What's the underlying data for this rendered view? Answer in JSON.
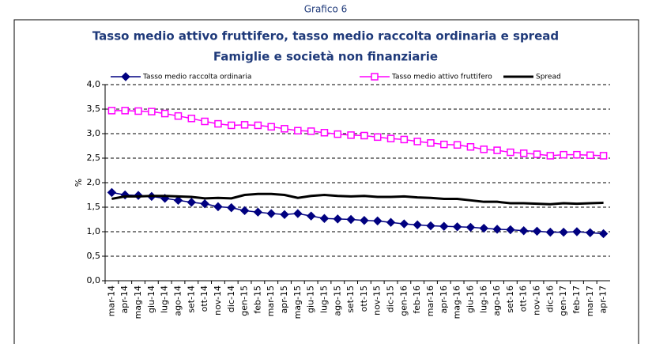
{
  "page_title": "Grafico 6",
  "chart_data": {
    "type": "line",
    "title": "Tasso medio attivo fruttifero, tasso medio raccolta ordinaria e spread",
    "subtitle": "Famiglie e società non finanziarie",
    "y_label": "%",
    "legend": "top",
    "grid": true,
    "categories": [
      "mar-14",
      "apr-14",
      "mag-14",
      "giu-14",
      "lug-14",
      "ago-14",
      "set-14",
      "ott-14",
      "nov-14",
      "dic-14",
      "gen-15",
      "feb-15",
      "mar-15",
      "apr-15",
      "mag-15",
      "giu-15",
      "lug-15",
      "ago-15",
      "set-15",
      "ott-15",
      "nov-15",
      "dic-15",
      "gen-16",
      "feb-16",
      "mar-16",
      "apr-16",
      "mag-16",
      "giu-16",
      "lug-16",
      "ago-16",
      "set-16",
      "ott-16",
      "nov-16",
      "dic-16",
      "gen-17",
      "feb-17",
      "mar-17",
      "apr-17"
    ],
    "ylim": [
      0,
      4
    ],
    "yticks": [
      {
        "value": 0,
        "label": "0,0"
      },
      {
        "value": 0.5,
        "label": "0,5"
      },
      {
        "value": 1,
        "label": "1,0"
      },
      {
        "value": 1.5,
        "label": "1,5"
      },
      {
        "value": 2,
        "label": "2,0"
      },
      {
        "value": 2.5,
        "label": "2,5"
      },
      {
        "value": 3,
        "label": "3,0"
      },
      {
        "value": 3.5,
        "label": "3,5"
      },
      {
        "value": 4,
        "label": "4,0"
      }
    ],
    "series": [
      {
        "name": "Tasso medio raccolta ordinaria",
        "color": "#000080",
        "marker": "diamond",
        "values": [
          1.8,
          1.75,
          1.74,
          1.72,
          1.68,
          1.64,
          1.6,
          1.57,
          1.51,
          1.49,
          1.43,
          1.4,
          1.37,
          1.35,
          1.37,
          1.32,
          1.27,
          1.26,
          1.25,
          1.23,
          1.22,
          1.19,
          1.16,
          1.14,
          1.12,
          1.11,
          1.1,
          1.09,
          1.07,
          1.05,
          1.04,
          1.02,
          1.01,
          0.99,
          0.99,
          1.0,
          0.98,
          0.96
        ]
      },
      {
        "name": "Tasso medio attivo fruttifero",
        "color": "#ff00ff",
        "marker": "square",
        "values": [
          3.47,
          3.47,
          3.46,
          3.45,
          3.41,
          3.36,
          3.31,
          3.25,
          3.2,
          3.17,
          3.18,
          3.17,
          3.14,
          3.1,
          3.06,
          3.05,
          3.02,
          2.99,
          2.97,
          2.96,
          2.93,
          2.9,
          2.88,
          2.84,
          2.81,
          2.78,
          2.77,
          2.73,
          2.68,
          2.66,
          2.62,
          2.6,
          2.58,
          2.55,
          2.57,
          2.57,
          2.56,
          2.55
        ]
      },
      {
        "name": "Spread",
        "color": "#000000",
        "marker": "none",
        "values": [
          1.67,
          1.72,
          1.72,
          1.73,
          1.73,
          1.72,
          1.71,
          1.68,
          1.69,
          1.68,
          1.75,
          1.77,
          1.77,
          1.75,
          1.69,
          1.73,
          1.75,
          1.73,
          1.72,
          1.73,
          1.71,
          1.71,
          1.72,
          1.7,
          1.69,
          1.67,
          1.67,
          1.64,
          1.61,
          1.61,
          1.58,
          1.58,
          1.57,
          1.56,
          1.58,
          1.57,
          1.58,
          1.59
        ]
      }
    ]
  }
}
